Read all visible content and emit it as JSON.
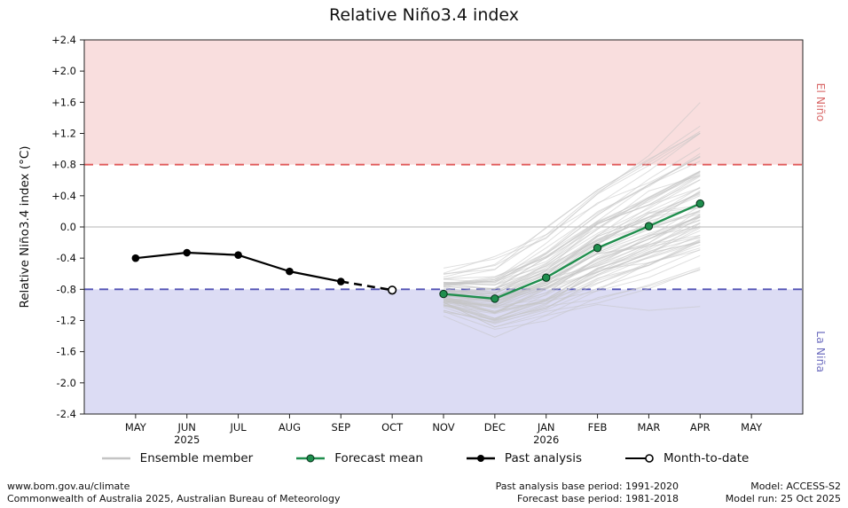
{
  "title": "Relative Niño3.4 index",
  "right_labels": {
    "el_nino": "El Niño",
    "la_nina": "La Niña"
  },
  "legend": [
    {
      "label": "Ensemble member"
    },
    {
      "label": "Forecast mean"
    },
    {
      "label": "Past analysis"
    },
    {
      "label": "Month-to-date"
    }
  ],
  "footer": {
    "left1": "www.bom.gov.au/climate",
    "left2": "Commonwealth of Australia 2025, Australian Bureau of Meteorology",
    "center1": "Past analysis base period: 1991-2020",
    "center2": "Forecast base period: 1981-2018",
    "right1": "Model: ACCESS-S2",
    "right2": "Model run: 25 Oct 2025"
  },
  "chart_data": {
    "type": "line",
    "title": "Relative Niño3.4 index",
    "xlabel": "",
    "ylabel": "Relative Niño3.4 index (°C)",
    "x_categories": [
      "MAY",
      "JUN",
      "JUL",
      "AUG",
      "SEP",
      "OCT",
      "NOV",
      "DEC",
      "JAN",
      "FEB",
      "MAR",
      "APR",
      "MAY"
    ],
    "year_labels": [
      {
        "index": 1,
        "label": "2025"
      },
      {
        "index": 8,
        "label": "2026"
      }
    ],
    "ylim": [
      -2.4,
      2.4
    ],
    "yticks": [
      -2.4,
      -2.0,
      -1.6,
      -1.2,
      -0.8,
      -0.4,
      0.0,
      0.4,
      0.8,
      1.2,
      1.6,
      2.0,
      2.4
    ],
    "grid": false,
    "legend_position": "bottom",
    "thresholds": {
      "el_nino": 0.8,
      "la_nina": -0.8
    },
    "series": {
      "past_analysis": {
        "name": "Past analysis",
        "x": [
          0,
          1,
          2,
          3,
          4
        ],
        "y": [
          -0.4,
          -0.33,
          -0.36,
          -0.57,
          -0.7
        ]
      },
      "month_to_date": {
        "name": "Month-to-date",
        "x": 5,
        "y": -0.81
      },
      "forecast_mean": {
        "name": "Forecast mean",
        "x": [
          6,
          7,
          8,
          9,
          10,
          11
        ],
        "y": [
          -0.86,
          -0.92,
          -0.65,
          -0.27,
          0.01,
          0.3
        ]
      },
      "ensemble": {
        "name": "Ensemble member",
        "x": [
          6,
          7,
          8,
          9,
          10,
          11
        ],
        "count": 80,
        "sigma": [
          0.12,
          0.22,
          0.3,
          0.38,
          0.45,
          0.5
        ],
        "noise": 0.07,
        "seed": 42
      }
    },
    "colors": {
      "el_nino_fill": "#f9dede",
      "la_nina_fill": "#dcdcf4",
      "el_nino_line": "#e05a5a",
      "la_nina_line": "#5353b5",
      "el_nino_label": "#d96a6a",
      "la_nina_label": "#7070c0",
      "ensemble": "#c4c4c4",
      "forecast": "#1f8e4d",
      "past": "#000000",
      "zero_line": "#b5b5b5",
      "frame": "#222222"
    }
  }
}
